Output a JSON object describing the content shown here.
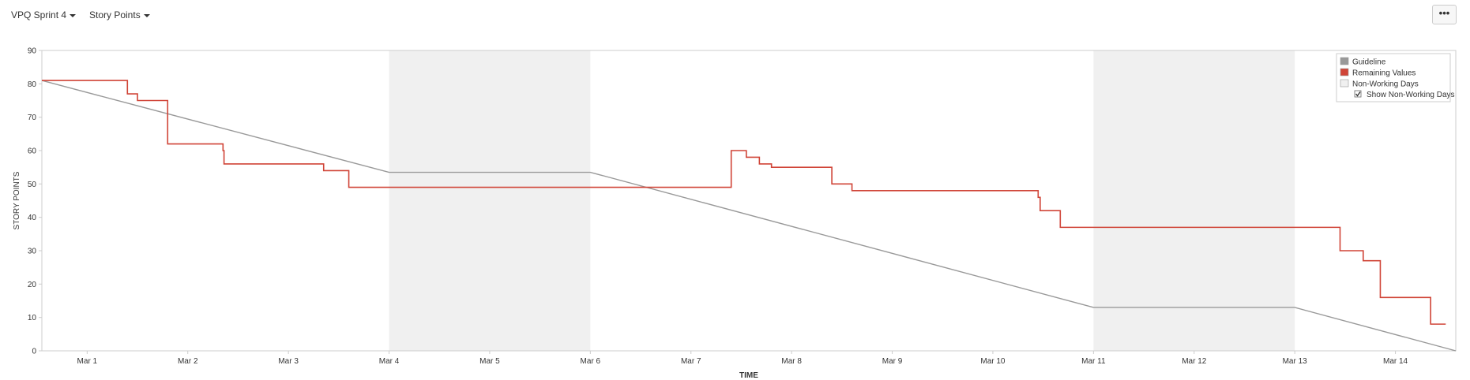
{
  "toolbar": {
    "sprint_label": "VPQ Sprint 4",
    "metric_label": "Story Points",
    "more_label": "•••"
  },
  "chart_data": {
    "type": "line",
    "xlabel": "TIME",
    "ylabel": "STORY POINTS",
    "ylim": [
      0,
      90
    ],
    "yticks": [
      0,
      10,
      20,
      30,
      40,
      50,
      60,
      70,
      80,
      90
    ],
    "xlim": [
      0.55,
      14.6
    ],
    "xticks": [
      {
        "pos": 1,
        "label": "Mar 1"
      },
      {
        "pos": 2,
        "label": "Mar 2"
      },
      {
        "pos": 3,
        "label": "Mar 3"
      },
      {
        "pos": 4,
        "label": "Mar 4"
      },
      {
        "pos": 5,
        "label": "Mar 5"
      },
      {
        "pos": 6,
        "label": "Mar 6"
      },
      {
        "pos": 7,
        "label": "Mar 7"
      },
      {
        "pos": 8,
        "label": "Mar 8"
      },
      {
        "pos": 9,
        "label": "Mar 9"
      },
      {
        "pos": 10,
        "label": "Mar 10"
      },
      {
        "pos": 11,
        "label": "Mar 11"
      },
      {
        "pos": 12,
        "label": "Mar 12"
      },
      {
        "pos": 13,
        "label": "Mar 13"
      },
      {
        "pos": 14,
        "label": "Mar 14"
      }
    ],
    "non_working_days": [
      [
        4,
        6
      ],
      [
        11,
        13
      ]
    ],
    "series": [
      {
        "name": "Guideline",
        "color": "#999999",
        "style": "line",
        "points": [
          [
            0.55,
            81
          ],
          [
            4,
            53.5
          ],
          [
            6,
            53.5
          ],
          [
            11,
            13
          ],
          [
            13,
            13
          ],
          [
            14.6,
            0
          ]
        ]
      },
      {
        "name": "Remaining Values",
        "color": "#d04437",
        "style": "step",
        "points": [
          [
            0.55,
            81
          ],
          [
            1.4,
            77
          ],
          [
            1.5,
            75
          ],
          [
            1.8,
            62
          ],
          [
            2.35,
            60
          ],
          [
            2.36,
            56
          ],
          [
            3.35,
            54
          ],
          [
            3.6,
            49
          ],
          [
            7.4,
            60
          ],
          [
            7.55,
            58
          ],
          [
            7.68,
            56
          ],
          [
            7.8,
            55
          ],
          [
            8.4,
            50
          ],
          [
            8.6,
            48
          ],
          [
            10.45,
            46
          ],
          [
            10.47,
            42
          ],
          [
            10.67,
            37
          ],
          [
            13.45,
            30
          ],
          [
            13.68,
            27
          ],
          [
            13.85,
            16
          ],
          [
            14.35,
            8
          ],
          [
            14.5,
            8
          ]
        ]
      }
    ],
    "legend": {
      "position": "top-right",
      "items": [
        {
          "label": "Guideline",
          "color": "#999999"
        },
        {
          "label": "Remaining Values",
          "color": "#d04437"
        },
        {
          "label": "Non-Working Days",
          "color": "#f0f0f0"
        }
      ],
      "checkbox_label": "Show Non-Working Days",
      "checkbox_checked": true
    },
    "grid": false
  }
}
